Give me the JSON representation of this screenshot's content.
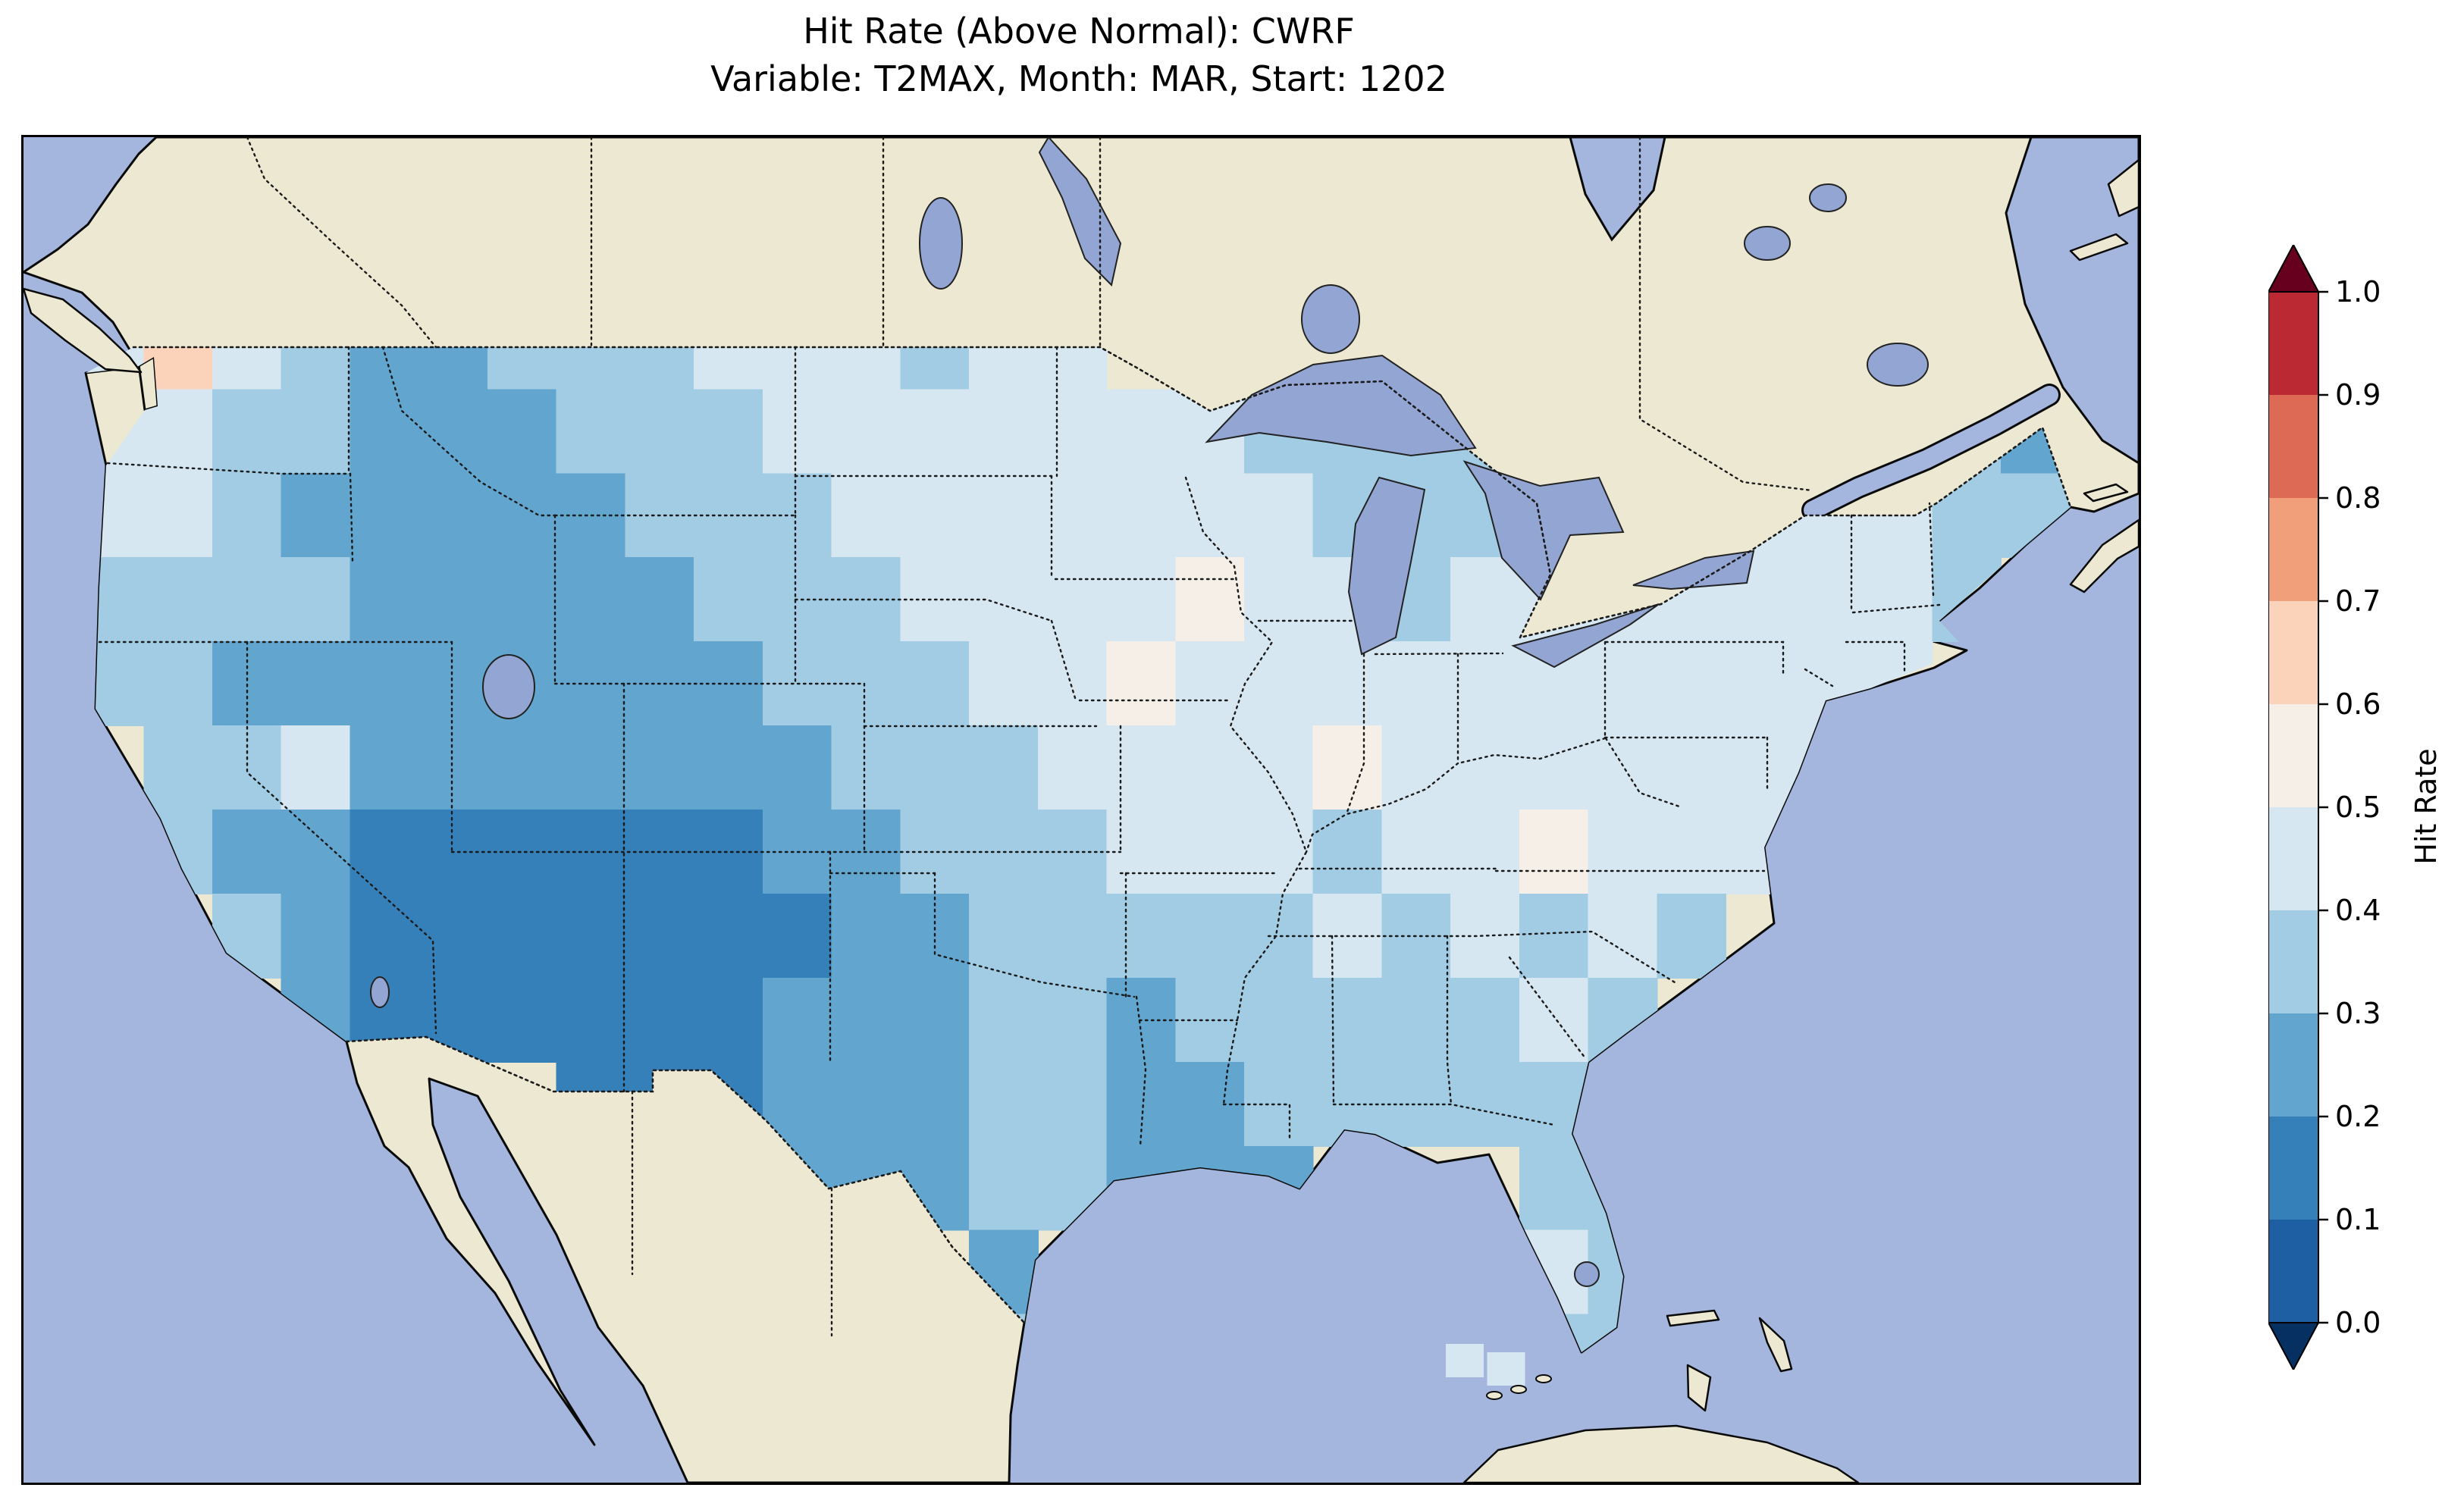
{
  "title": {
    "line1": "Hit Rate (Above Normal): CWRF",
    "line2": "Variable: T2MAX, Month: MAR, Start: 1202"
  },
  "colorbar": {
    "label": "Hit Rate",
    "ticks": [
      "1.0",
      "0.9",
      "0.8",
      "0.7",
      "0.6",
      "0.5",
      "0.4",
      "0.3",
      "0.2",
      "0.1",
      "0.0"
    ]
  },
  "colors": {
    "figure_bg": "#ffffff",
    "ocean": "#a4b6dd",
    "land": "#ece8d1",
    "lake": "#93a5d2",
    "coastline": "#0a0a0a",
    "border_dotted": "#1a1a1a"
  },
  "chart_data": {
    "type": "heatmap",
    "title": "Hit Rate (Above Normal): CWRF",
    "subtitle": "Variable: T2MAX, Month: MAR, Start: 1202",
    "metric": "Hit Rate (Above Normal)",
    "model": "CWRF",
    "variable": "T2MAX",
    "month": "MAR",
    "start": "1202",
    "region": "Contiguous United States",
    "colorbar_label": "Hit Rate",
    "colorbar_ticks": [
      0.0,
      0.1,
      0.2,
      0.3,
      0.4,
      0.5,
      0.6,
      0.7,
      0.8,
      0.9,
      1.0
    ],
    "colormap": {
      "name": "RdBu_r binned 0.1, extend both",
      "bin_edges": [
        0.0,
        0.1,
        0.2,
        0.3,
        0.4,
        0.5,
        0.6,
        0.7,
        0.8,
        0.9,
        1.0
      ],
      "colors": [
        "#053061",
        "#1e5fa3",
        "#3680b9",
        "#62a6cf",
        "#a2cce3",
        "#d6e7f1",
        "#f5efe7",
        "#fbd2ba",
        "#f19e7b",
        "#dd6a55",
        "#bb2a33",
        "#67001f"
      ]
    },
    "map_extent": {
      "lon_min": -126.5,
      "lon_max": -65.0,
      "lat_min": 22.0,
      "lat_max": 54.0
    },
    "grid": {
      "lon_start": -124,
      "dlon": 2,
      "lat_start": 49,
      "dlat": 2,
      "values": [
        [
          0.45,
          0.62,
          0.42,
          0.32,
          0.28,
          0.28,
          0.32,
          0.35,
          0.38,
          0.4,
          0.42,
          0.42,
          0.38,
          0.42,
          0.45,
          null,
          null,
          null,
          null,
          null,
          null,
          null,
          null,
          null,
          null,
          null,
          null,
          null,
          null
        ],
        [
          0.48,
          0.45,
          0.38,
          0.3,
          0.25,
          0.25,
          0.28,
          0.32,
          0.35,
          0.35,
          0.4,
          0.45,
          0.42,
          0.45,
          0.48,
          0.45,
          0.42,
          0.38,
          0.38,
          0.38,
          0.38,
          null,
          null,
          null,
          null,
          null,
          null,
          0.32,
          0.28
        ],
        [
          0.42,
          0.45,
          0.35,
          0.28,
          0.26,
          0.24,
          0.22,
          0.28,
          0.32,
          0.35,
          0.35,
          0.4,
          0.42,
          0.45,
          0.48,
          0.45,
          0.42,
          0.45,
          0.38,
          0.35,
          0.38,
          0.42,
          null,
          null,
          0.45,
          0.42,
          0.45,
          0.38,
          0.35
        ],
        [
          0.35,
          0.38,
          0.34,
          0.3,
          0.25,
          0.25,
          0.28,
          0.24,
          0.28,
          0.3,
          0.32,
          0.38,
          0.42,
          0.45,
          0.48,
          0.45,
          0.52,
          0.45,
          0.42,
          0.38,
          0.42,
          0.45,
          0.45,
          0.42,
          0.45,
          0.4,
          0.42,
          0.38,
          null
        ],
        [
          0.32,
          0.3,
          0.28,
          0.25,
          0.22,
          0.25,
          0.25,
          0.28,
          0.25,
          0.28,
          0.3,
          0.35,
          0.38,
          0.42,
          0.45,
          0.52,
          0.45,
          0.48,
          0.45,
          0.42,
          0.45,
          0.48,
          0.45,
          0.45,
          0.42,
          0.45,
          0.4,
          null,
          null
        ],
        [
          null,
          0.35,
          0.3,
          0.42,
          0.25,
          0.22,
          0.25,
          0.22,
          0.25,
          0.25,
          0.28,
          0.32,
          0.35,
          0.38,
          0.42,
          0.45,
          0.42,
          0.45,
          0.52,
          0.45,
          0.42,
          0.45,
          0.42,
          0.45,
          0.42,
          0.45,
          null,
          null,
          null
        ],
        [
          null,
          0.32,
          0.28,
          0.22,
          0.18,
          0.15,
          0.18,
          0.15,
          0.15,
          0.18,
          0.22,
          0.28,
          0.32,
          0.35,
          0.38,
          0.42,
          0.45,
          0.42,
          0.38,
          0.42,
          0.45,
          0.52,
          0.45,
          0.42,
          0.4,
          null,
          null,
          null,
          null
        ],
        [
          null,
          null,
          0.3,
          0.25,
          0.15,
          0.12,
          0.12,
          0.12,
          0.15,
          0.15,
          0.18,
          0.25,
          0.28,
          0.32,
          0.35,
          0.38,
          0.35,
          0.38,
          0.42,
          0.38,
          0.42,
          0.38,
          0.4,
          0.38,
          null,
          null,
          null,
          null,
          null
        ],
        [
          null,
          null,
          null,
          0.28,
          0.18,
          0.12,
          0.12,
          0.12,
          0.12,
          0.15,
          0.2,
          0.25,
          0.28,
          0.3,
          0.32,
          0.25,
          0.3,
          0.35,
          0.38,
          0.35,
          0.38,
          0.45,
          0.38,
          null,
          null,
          null,
          null,
          null,
          null
        ],
        [
          null,
          null,
          null,
          null,
          null,
          null,
          null,
          0.15,
          0.15,
          0.18,
          0.22,
          0.25,
          0.28,
          0.3,
          0.35,
          0.22,
          0.28,
          0.3,
          0.35,
          0.35,
          0.38,
          0.35,
          0.35,
          null,
          null,
          null,
          null,
          null,
          null
        ],
        [
          null,
          null,
          null,
          null,
          null,
          null,
          null,
          null,
          null,
          null,
          0.22,
          0.25,
          0.28,
          0.3,
          0.32,
          0.28,
          0.25,
          0.22,
          null,
          null,
          null,
          0.32,
          0.35,
          null,
          null,
          null,
          null,
          null,
          null
        ],
        [
          null,
          null,
          null,
          null,
          null,
          null,
          null,
          null,
          null,
          null,
          null,
          null,
          null,
          0.28,
          null,
          null,
          null,
          null,
          null,
          null,
          null,
          0.42,
          0.32,
          null,
          null,
          null,
          null,
          null,
          null
        ],
        [
          null,
          null,
          null,
          null,
          null,
          null,
          null,
          null,
          null,
          null,
          null,
          null,
          null,
          0.3,
          null,
          null,
          null,
          null,
          null,
          null,
          null,
          0.32,
          0.35,
          null,
          null,
          null,
          null,
          null,
          null
        ]
      ]
    },
    "offshore_cells": [
      {
        "lon": -84.6,
        "lat": 24.9,
        "value": 0.45
      },
      {
        "lon": -83.4,
        "lat": 24.7,
        "value": 0.42
      }
    ]
  }
}
